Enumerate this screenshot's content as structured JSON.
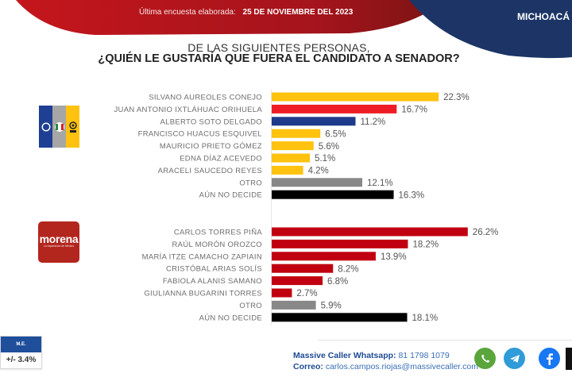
{
  "header": {
    "last_survey_label": "Última encuesta elaborada:",
    "last_survey_date": "25 DE NOVIEMBRE DEL 2023",
    "region": "MICHOACÁ",
    "colors": {
      "red_banner": "#b3151f",
      "blue_circle": "#1c3566"
    }
  },
  "question": {
    "line1": "DE LAS SIGUIENTES  PERSONAS,",
    "line2": "¿QUIÉN LE GUSTARÍA QUE FUERA EL CANDIDATO  A SENADOR?"
  },
  "logos": {
    "coalition": {
      "icon": "pan-pri-prd-coalition-logo",
      "colors": [
        "#1f3f94",
        "#a6a6a6",
        "#ffc20e"
      ]
    },
    "morena": {
      "name": "morena",
      "subtitle": "La esperanza de México",
      "color": "#b3261e"
    }
  },
  "chart_data": [
    {
      "type": "bar",
      "orientation": "horizontal",
      "title": "¿QUIÉN LE GUSTARÍA QUE FUERA EL CANDIDATO A SENADOR? — PAN-PRI-PRD",
      "categories": [
        "SILVANO AUREOLES CONEJO",
        "JUAN ANTONIO IXTLÁHUAC ORIHUELA",
        "ALBERTO SOTO DELGADO",
        "FRANCISCO HUACUS ESQUIVEL",
        "MAURICIO PRIETO GÓMEZ",
        "EDNA DÍAZ ACEVEDO",
        "ARACELI SAUCEDO REYES",
        "OTRO",
        "AÚN NO DECIDE"
      ],
      "values": [
        22.3,
        16.7,
        11.2,
        6.5,
        5.6,
        5.1,
        4.2,
        12.1,
        16.3
      ],
      "value_labels": [
        "22.3%",
        "16.7%",
        "11.2%",
        "6.5%",
        "5.6%",
        "5.1%",
        "4.2%",
        "12.1%",
        "16.3%"
      ],
      "colors": [
        "#ffc20e",
        "#ee1c25",
        "#1f3a8a",
        "#ffc20e",
        "#ffc20e",
        "#ffc20e",
        "#ffc20e",
        "#888888",
        "#000000"
      ],
      "xlabel": "",
      "ylabel": "",
      "xlim": [
        0,
        30
      ],
      "grid": false
    },
    {
      "type": "bar",
      "orientation": "horizontal",
      "title": "¿QUIÉN LE GUSTARÍA QUE FUERA EL CANDIDATO A SENADOR? — MORENA",
      "categories": [
        "CARLOS TORRES PIÑA",
        "RAÚL MORÓN OROZCO",
        "MARÍA ITZE CAMACHO ZAPIAIN",
        "CRISTÓBAL ARIAS SOLÍS",
        "FABIOLA ALANIS SAMANO",
        "GIULIANNA BUGARINI TORRES",
        "OTRO",
        "AÚN NO DECIDE"
      ],
      "values": [
        26.2,
        18.2,
        13.9,
        8.2,
        6.8,
        2.7,
        5.9,
        18.1
      ],
      "value_labels": [
        "26.2%",
        "18.2%",
        "13.9%",
        "8.2%",
        "6.8%",
        "2.7%",
        "5.9%",
        "18.1%"
      ],
      "colors": [
        "#c00010",
        "#c00010",
        "#c00010",
        "#c00010",
        "#c00010",
        "#c00010",
        "#888888",
        "#000000"
      ],
      "xlabel": "",
      "ylabel": "",
      "xlim": [
        0,
        30
      ],
      "grid": false
    }
  ],
  "margin_of_error": {
    "label": "M.E.",
    "value": "+/- 3.4%"
  },
  "footer": {
    "whatsapp_label": "Massive Caller Whatsapp:",
    "whatsapp_number": "81 1798 1079",
    "email_label": "Correo:",
    "email": "carlos.campos.riojas@massivecaller.com",
    "social": [
      {
        "name": "whatsapp-icon",
        "color": "#5aa53c"
      },
      {
        "name": "telegram-icon",
        "color": "#2f9bd8"
      },
      {
        "name": "facebook-icon",
        "color": "#1877f2"
      }
    ]
  }
}
